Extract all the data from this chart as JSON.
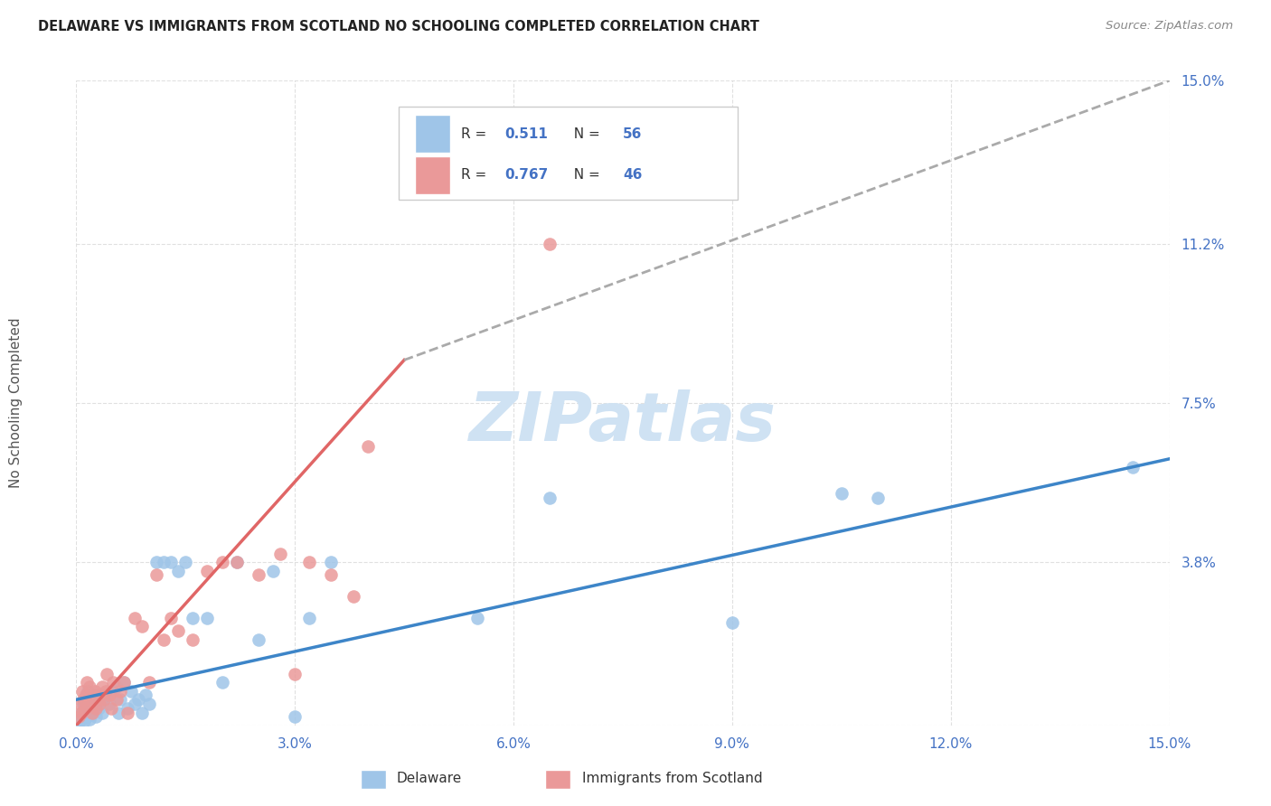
{
  "title": "DELAWARE VS IMMIGRANTS FROM SCOTLAND NO SCHOOLING COMPLETED CORRELATION CHART",
  "source": "Source: ZipAtlas.com",
  "ylabel": "No Schooling Completed",
  "xlim": [
    0.0,
    15.0
  ],
  "ylim": [
    0.0,
    15.0
  ],
  "ytick_values": [
    0.0,
    3.8,
    7.5,
    11.2,
    15.0
  ],
  "ytick_labels": [
    "",
    "3.8%",
    "7.5%",
    "11.2%",
    "15.0%"
  ],
  "xtick_values": [
    0.0,
    3.0,
    6.0,
    9.0,
    12.0,
    15.0
  ],
  "legend_val1": "0.511",
  "legend_nval1": "56",
  "legend_val2": "0.767",
  "legend_nval2": "46",
  "color_delaware": "#9fc5e8",
  "color_scotland": "#ea9999",
  "color_line_delaware": "#3d85c8",
  "color_line_scotland": "#e06666",
  "color_line_scotland_ext": "#aaaaaa",
  "color_axis_labels": "#4472c4",
  "background_color": "#ffffff",
  "watermark_color": "#cfe2f3",
  "del_x": [
    0.05,
    0.07,
    0.08,
    0.1,
    0.11,
    0.12,
    0.13,
    0.14,
    0.15,
    0.16,
    0.18,
    0.19,
    0.2,
    0.22,
    0.23,
    0.25,
    0.27,
    0.28,
    0.3,
    0.32,
    0.35,
    0.38,
    0.4,
    0.45,
    0.5,
    0.55,
    0.58,
    0.6,
    0.65,
    0.7,
    0.75,
    0.8,
    0.85,
    0.9,
    0.95,
    1.0,
    1.1,
    1.2,
    1.3,
    1.4,
    1.5,
    1.6,
    1.8,
    2.0,
    2.2,
    2.5,
    2.7,
    3.0,
    3.2,
    3.5,
    5.5,
    6.5,
    9.0,
    10.5,
    11.0,
    14.5
  ],
  "del_y": [
    0.1,
    0.3,
    0.2,
    0.5,
    0.1,
    0.4,
    0.6,
    0.2,
    0.3,
    0.8,
    0.15,
    0.25,
    0.35,
    0.6,
    0.45,
    0.7,
    0.2,
    0.55,
    0.4,
    0.5,
    0.3,
    0.6,
    0.7,
    0.5,
    0.8,
    0.9,
    0.3,
    0.6,
    1.0,
    0.4,
    0.8,
    0.5,
    0.6,
    0.3,
    0.7,
    0.5,
    3.8,
    3.8,
    3.8,
    3.6,
    3.8,
    2.5,
    2.5,
    1.0,
    3.8,
    2.0,
    3.6,
    0.2,
    2.5,
    3.8,
    2.5,
    5.3,
    2.4,
    5.4,
    5.3,
    6.0
  ],
  "scot_x": [
    0.03,
    0.05,
    0.07,
    0.08,
    0.1,
    0.12,
    0.13,
    0.15,
    0.17,
    0.18,
    0.2,
    0.22,
    0.25,
    0.27,
    0.3,
    0.32,
    0.35,
    0.38,
    0.4,
    0.42,
    0.45,
    0.48,
    0.5,
    0.55,
    0.6,
    0.65,
    0.7,
    0.8,
    0.9,
    1.0,
    1.1,
    1.2,
    1.3,
    1.4,
    1.6,
    1.8,
    2.0,
    2.2,
    2.5,
    2.8,
    3.0,
    3.2,
    3.5,
    3.8,
    4.0,
    6.5
  ],
  "scot_y": [
    0.2,
    0.5,
    0.3,
    0.8,
    0.6,
    0.4,
    0.7,
    1.0,
    0.5,
    0.9,
    0.6,
    0.3,
    0.8,
    0.4,
    0.7,
    0.5,
    0.9,
    0.6,
    0.8,
    1.2,
    0.7,
    0.4,
    1.0,
    0.6,
    0.8,
    1.0,
    0.3,
    2.5,
    2.3,
    1.0,
    3.5,
    2.0,
    2.5,
    2.2,
    2.0,
    3.6,
    3.8,
    3.8,
    3.5,
    4.0,
    1.2,
    3.8,
    3.5,
    3.0,
    6.5,
    11.2
  ],
  "del_line_x0": 0.0,
  "del_line_y0": 0.6,
  "del_line_x1": 15.0,
  "del_line_y1": 6.2,
  "scot_line_solid_x0": 0.0,
  "scot_line_solid_y0": 0.0,
  "scot_line_solid_x1": 4.5,
  "scot_line_solid_y1": 8.5,
  "scot_line_dash_x0": 4.5,
  "scot_line_dash_y0": 8.5,
  "scot_line_dash_x1": 15.0,
  "scot_line_dash_y1": 15.0
}
